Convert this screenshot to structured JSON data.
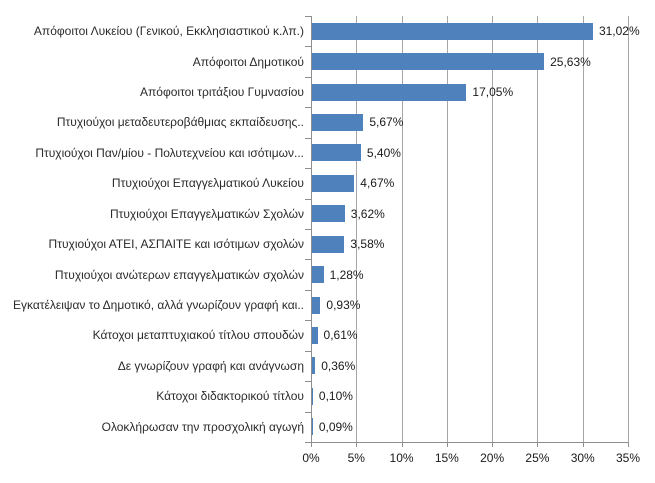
{
  "chart_data": {
    "type": "bar",
    "orientation": "horizontal",
    "categories": [
      "Απόφοιτοι Λυκείου (Γενικού, Εκκλησιαστικού κ.λπ.)",
      "Απόφοιτοι Δημοτικού",
      "Απόφοιτοι τριτάξιου Γυμνασίου",
      "Πτυχιούχοι μεταδευτεροβάθμιας εκπαίδευσης..",
      "Πτυχιούχοι Παν/μίου - Πολυτεχνείου και ισότιμων...",
      "Πτυχιούχοι Επαγγελματικού Λυκείου",
      "Πτυχιούχοι Επαγγελματικών Σχολών",
      "Πτυχιούχοι ΑΤΕΙ, ΑΣΠΑΙΤΕ και ισότιμων σχολών",
      "Πτυχιούχοι ανώτερων επαγγελματικών σχολών",
      "Εγκατέλειψαν το Δημοτικό, αλλά γνωρίζουν γραφή και..",
      "Κάτοχοι μεταπτυχιακού τίτλου σπουδών",
      "Δε γνωρίζουν γραφή και ανάγνωση",
      "Κάτοχοι διδακτορικού τίτλου",
      "Ολοκλήρωσαν την προσχολική αγωγή"
    ],
    "values": [
      31.02,
      25.63,
      17.05,
      5.67,
      5.4,
      4.67,
      3.62,
      3.58,
      1.28,
      0.93,
      0.61,
      0.36,
      0.1,
      0.09
    ],
    "value_labels": [
      "31,02%",
      "25,63%",
      "17,05%",
      "5,67%",
      "5,40%",
      "4,67%",
      "3,62%",
      "3,58%",
      "1,28%",
      "0,93%",
      "0,61%",
      "0,36%",
      "0,10%",
      "0,09%"
    ],
    "x_ticks": [
      "0%",
      "5%",
      "10%",
      "15%",
      "20%",
      "25%",
      "30%",
      "35%"
    ],
    "xlim": [
      0,
      35
    ],
    "grid": true,
    "legend": "none",
    "bar_color": "#4F81BD",
    "gridline_color": "#a6a6a6",
    "axis_color": "#8e8e8e",
    "text_color": "#1a1a1a",
    "background_color": "#ffffff"
  }
}
